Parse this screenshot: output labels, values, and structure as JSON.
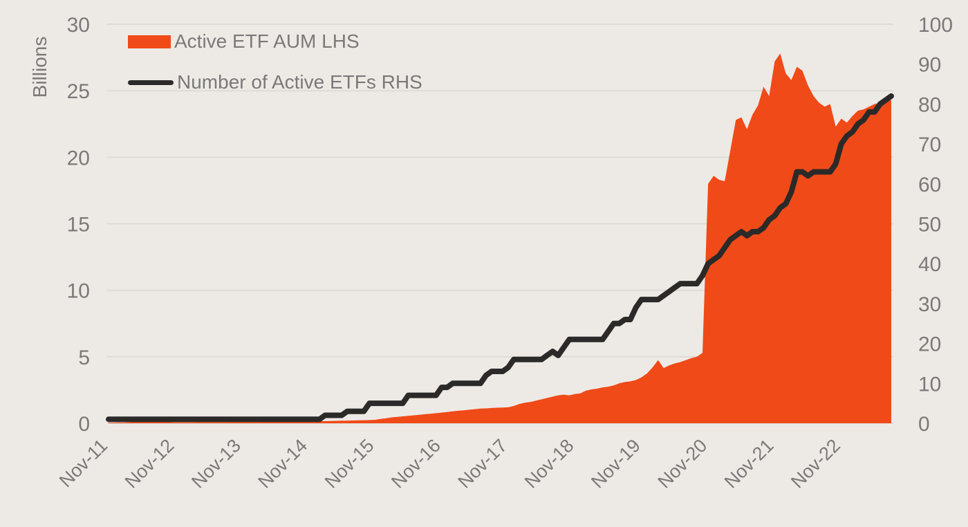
{
  "chart_data": {
    "type": "area+line combo",
    "title": "",
    "ylabel_left": "Billions",
    "legend_position": "top-left",
    "grid": "horizontal",
    "colors": {
      "background": "#EDEAE6",
      "gridline": "#DEDAD4",
      "text": "#7B7978",
      "area_orange": "#F04A19",
      "line_black": "#2B2A28"
    },
    "axis": {
      "left": {
        "min": 0,
        "max": 30,
        "ticks": [
          0,
          5,
          10,
          15,
          20,
          25,
          30
        ]
      },
      "right": {
        "min": 0,
        "max": 100,
        "ticks": [
          0,
          10,
          20,
          30,
          40,
          50,
          60,
          70,
          80,
          90,
          100
        ]
      }
    },
    "x_tick_labels": [
      "Nov-11",
      "Nov-12",
      "Nov-13",
      "Nov-14",
      "Nov-15",
      "Nov-16",
      "Nov-17",
      "Nov-18",
      "Nov-19",
      "Nov-20",
      "Nov-21",
      "Nov-22"
    ],
    "months": [
      "Nov-11",
      "Dec-11",
      "Jan-12",
      "Feb-12",
      "Mar-12",
      "Apr-12",
      "May-12",
      "Jun-12",
      "Jul-12",
      "Aug-12",
      "Sep-12",
      "Oct-12",
      "Nov-12",
      "Dec-12",
      "Jan-13",
      "Feb-13",
      "Mar-13",
      "Apr-13",
      "May-13",
      "Jun-13",
      "Jul-13",
      "Aug-13",
      "Sep-13",
      "Oct-13",
      "Nov-13",
      "Dec-13",
      "Jan-14",
      "Feb-14",
      "Mar-14",
      "Apr-14",
      "May-14",
      "Jun-14",
      "Jul-14",
      "Aug-14",
      "Sep-14",
      "Oct-14",
      "Nov-14",
      "Dec-14",
      "Jan-15",
      "Feb-15",
      "Mar-15",
      "Apr-15",
      "May-15",
      "Jun-15",
      "Jul-15",
      "Aug-15",
      "Sep-15",
      "Oct-15",
      "Nov-15",
      "Dec-15",
      "Jan-16",
      "Feb-16",
      "Mar-16",
      "Apr-16",
      "May-16",
      "Jun-16",
      "Jul-16",
      "Aug-16",
      "Sep-16",
      "Oct-16",
      "Nov-16",
      "Dec-16",
      "Jan-17",
      "Feb-17",
      "Mar-17",
      "Apr-17",
      "May-17",
      "Jun-17",
      "Jul-17",
      "Aug-17",
      "Sep-17",
      "Oct-17",
      "Nov-17",
      "Dec-17",
      "Jan-18",
      "Feb-18",
      "Mar-18",
      "Apr-18",
      "May-18",
      "Jun-18",
      "Jul-18",
      "Aug-18",
      "Sep-18",
      "Oct-18",
      "Nov-18",
      "Dec-18",
      "Jan-19",
      "Feb-19",
      "Mar-19",
      "Apr-19",
      "May-19",
      "Jun-19",
      "Jul-19",
      "Aug-19",
      "Sep-19",
      "Oct-19",
      "Nov-19",
      "Dec-19",
      "Jan-20",
      "Feb-20",
      "Mar-20",
      "Apr-20",
      "May-20",
      "Jun-20",
      "Jul-20",
      "Aug-20",
      "Sep-20",
      "Oct-20",
      "Nov-20",
      "Dec-20",
      "Jan-21",
      "Feb-21",
      "Mar-21",
      "Apr-21",
      "May-21",
      "Jun-21",
      "Jul-21",
      "Aug-21",
      "Sep-21",
      "Oct-21",
      "Nov-21",
      "Dec-21",
      "Jan-22",
      "Feb-22",
      "Mar-22",
      "Apr-22",
      "May-22",
      "Jun-22",
      "Jul-22",
      "Aug-22",
      "Sep-22",
      "Oct-22",
      "Nov-22",
      "Dec-22",
      "Jan-23",
      "Feb-23",
      "Mar-23",
      "Apr-23",
      "May-23",
      "Jun-23",
      "Jul-23",
      "Aug-23"
    ],
    "series": [
      {
        "name": "Active ETF AUM LHS",
        "type": "area",
        "axis": "left",
        "unit": "billions",
        "color": "#F04A19",
        "values": [
          0.05,
          0.05,
          0.06,
          0.07,
          0.1,
          0.15,
          0.18,
          0.18,
          0.17,
          0.15,
          0.12,
          0.1,
          0.08,
          0.08,
          0.08,
          0.08,
          0.09,
          0.09,
          0.09,
          0.09,
          0.09,
          0.09,
          0.1,
          0.1,
          0.1,
          0.1,
          0.1,
          0.1,
          0.11,
          0.11,
          0.11,
          0.12,
          0.12,
          0.12,
          0.13,
          0.13,
          0.14,
          0.14,
          0.15,
          0.16,
          0.17,
          0.18,
          0.19,
          0.2,
          0.21,
          0.22,
          0.23,
          0.24,
          0.26,
          0.32,
          0.38,
          0.44,
          0.48,
          0.52,
          0.56,
          0.6,
          0.64,
          0.68,
          0.72,
          0.76,
          0.8,
          0.85,
          0.9,
          0.94,
          0.98,
          1.02,
          1.06,
          1.1,
          1.12,
          1.15,
          1.17,
          1.18,
          1.2,
          1.3,
          1.45,
          1.55,
          1.6,
          1.7,
          1.8,
          1.9,
          2.0,
          2.1,
          2.15,
          2.1,
          2.2,
          2.25,
          2.45,
          2.55,
          2.6,
          2.7,
          2.75,
          2.85,
          3.0,
          3.1,
          3.15,
          3.25,
          3.45,
          3.75,
          4.2,
          4.75,
          4.15,
          4.35,
          4.5,
          4.6,
          4.75,
          4.9,
          5.0,
          5.3,
          18.0,
          18.6,
          18.3,
          18.2,
          20.5,
          22.8,
          23.0,
          22.1,
          23.2,
          23.9,
          25.3,
          24.6,
          27.2,
          27.8,
          26.3,
          25.8,
          26.8,
          26.5,
          25.4,
          24.6,
          24.1,
          23.8,
          24.0,
          22.3,
          22.9,
          22.6,
          23.1,
          23.5,
          23.6,
          23.8,
          24.0,
          24.1,
          24.2,
          24.3
        ]
      },
      {
        "name": "Number of Active ETFs RHS",
        "type": "line",
        "axis": "right",
        "unit": "count",
        "color": "#2B2A28",
        "values": [
          1,
          1,
          1,
          1,
          1,
          1,
          1,
          1,
          1,
          1,
          1,
          1,
          1,
          1,
          1,
          1,
          1,
          1,
          1,
          1,
          1,
          1,
          1,
          1,
          1,
          1,
          1,
          1,
          1,
          1,
          1,
          1,
          1,
          1,
          1,
          1,
          1,
          1,
          1,
          2,
          2,
          2,
          2,
          3,
          3,
          3,
          3,
          5,
          5,
          5,
          5,
          5,
          5,
          5,
          7,
          7,
          7,
          7,
          7,
          7,
          9,
          9,
          10,
          10,
          10,
          10,
          10,
          10,
          12,
          13,
          13,
          13,
          14,
          16,
          16,
          16,
          16,
          16,
          16,
          17,
          18,
          17,
          19,
          21,
          21,
          21,
          21,
          21,
          21,
          21,
          23,
          25,
          25,
          26,
          26,
          29,
          31,
          31,
          31,
          31,
          32,
          33,
          34,
          35,
          35,
          35,
          35,
          37,
          40,
          41,
          42,
          44,
          46,
          47,
          48,
          47,
          48,
          48,
          49,
          51,
          52,
          54,
          55,
          58,
          63,
          63,
          62,
          63,
          63,
          63,
          63,
          65,
          70,
          72,
          73,
          75,
          76,
          78,
          78,
          80,
          81,
          82
        ]
      }
    ]
  }
}
